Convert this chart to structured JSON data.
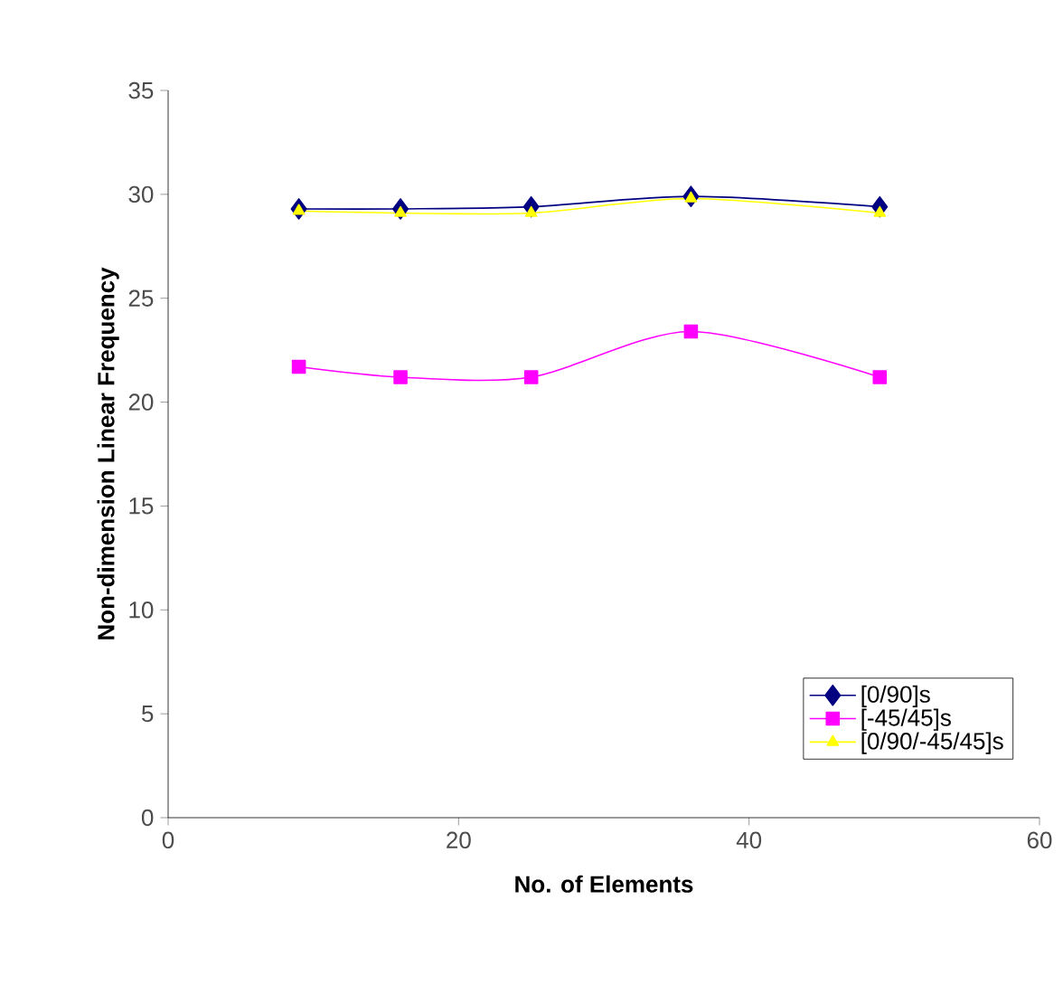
{
  "chart_data": {
    "type": "line",
    "xlabel": "No. of Elements",
    "ylabel": "Non-dimension Linear Frequency",
    "xlim": [
      0,
      60
    ],
    "xticks": [
      0,
      20,
      40,
      60
    ],
    "ylim": [
      0,
      35
    ],
    "yticks": [
      0,
      5,
      10,
      15,
      20,
      25,
      30,
      35
    ],
    "grid": false,
    "legend": "bottom right",
    "series": [
      {
        "name": "[0/90]s",
        "color": "#000080",
        "marker": "diamond",
        "x": [
          9,
          16,
          25,
          36,
          49
        ],
        "values": [
          29.3,
          29.3,
          29.4,
          29.9,
          29.4
        ]
      },
      {
        "name": "[-45/45]s",
        "color": "#ff00ff",
        "marker": "square",
        "x": [
          9,
          16,
          25,
          36,
          49
        ],
        "values": [
          21.7,
          21.2,
          21.2,
          23.4,
          21.2
        ]
      },
      {
        "name": "[0/90/-45/45]s",
        "color": "#ffff00",
        "marker": "triangle",
        "x": [
          9,
          16,
          25,
          36,
          49
        ],
        "values": [
          29.2,
          29.1,
          29.1,
          29.8,
          29.1
        ]
      }
    ]
  }
}
